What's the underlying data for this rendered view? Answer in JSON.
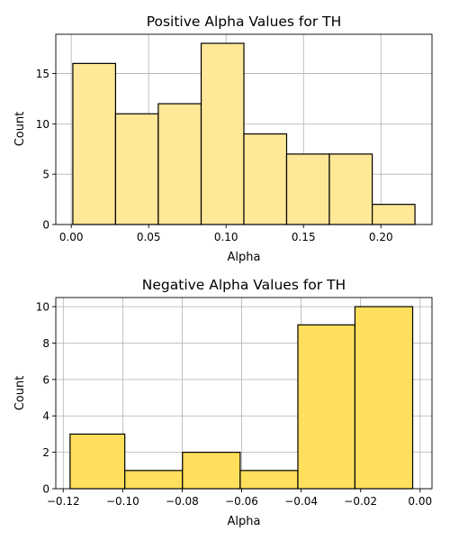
{
  "chart_data": [
    {
      "type": "bar",
      "subtype": "histogram",
      "title": "Positive Alpha Values for TH",
      "xlabel": "Alpha",
      "ylabel": "Count",
      "bar_color": "#ffe897",
      "edge_color": "#000000",
      "grid": true,
      "bins": [
        {
          "x0": 0.001,
          "x1": 0.0286,
          "count": 16
        },
        {
          "x0": 0.0286,
          "x1": 0.0562,
          "count": 11
        },
        {
          "x0": 0.0562,
          "x1": 0.0839,
          "count": 12
        },
        {
          "x0": 0.0839,
          "x1": 0.1115,
          "count": 18
        },
        {
          "x0": 0.1115,
          "x1": 0.1391,
          "count": 9
        },
        {
          "x0": 0.1391,
          "x1": 0.1667,
          "count": 7
        },
        {
          "x0": 0.1667,
          "x1": 0.1944,
          "count": 7
        },
        {
          "x0": 0.1944,
          "x1": 0.222,
          "count": 2
        }
      ],
      "xlim": [
        -0.01,
        0.233
      ],
      "ylim": [
        0,
        18.9
      ],
      "xticks": [
        {
          "value": 0.0,
          "label": "0.00"
        },
        {
          "value": 0.05,
          "label": "0.05"
        },
        {
          "value": 0.1,
          "label": "0.10"
        },
        {
          "value": 0.15,
          "label": "0.15"
        },
        {
          "value": 0.2,
          "label": "0.20"
        }
      ],
      "yticks": [
        {
          "value": 0,
          "label": "0"
        },
        {
          "value": 5,
          "label": "5"
        },
        {
          "value": 10,
          "label": "10"
        },
        {
          "value": 15,
          "label": "15"
        }
      ]
    },
    {
      "type": "bar",
      "subtype": "histogram",
      "title": "Negative Alpha Values for TH",
      "xlabel": "Alpha",
      "ylabel": "Count",
      "bar_color": "#ffdf5b",
      "edge_color": "#000000",
      "grid": true,
      "bins": [
        {
          "x0": -0.1177,
          "x1": -0.0993,
          "count": 3
        },
        {
          "x0": -0.0993,
          "x1": -0.0799,
          "count": 1
        },
        {
          "x0": -0.0799,
          "x1": -0.0605,
          "count": 2
        },
        {
          "x0": -0.0605,
          "x1": -0.0411,
          "count": 1
        },
        {
          "x0": -0.0411,
          "x1": -0.0219,
          "count": 9
        },
        {
          "x0": -0.0219,
          "x1": -0.0025,
          "count": 10
        }
      ],
      "xlim": [
        -0.1225,
        0.004
      ],
      "ylim": [
        0,
        10.5
      ],
      "xticks": [
        {
          "value": -0.12,
          "label": "−0.12"
        },
        {
          "value": -0.1,
          "label": "−0.10"
        },
        {
          "value": -0.08,
          "label": "−0.08"
        },
        {
          "value": -0.06,
          "label": "−0.06"
        },
        {
          "value": -0.04,
          "label": "−0.04"
        },
        {
          "value": -0.02,
          "label": "−0.02"
        },
        {
          "value": 0.0,
          "label": "0.00"
        }
      ],
      "yticks": [
        {
          "value": 0,
          "label": "0"
        },
        {
          "value": 2,
          "label": "2"
        },
        {
          "value": 4,
          "label": "4"
        },
        {
          "value": 6,
          "label": "6"
        },
        {
          "value": 8,
          "label": "8"
        },
        {
          "value": 10,
          "label": "10"
        }
      ]
    }
  ]
}
